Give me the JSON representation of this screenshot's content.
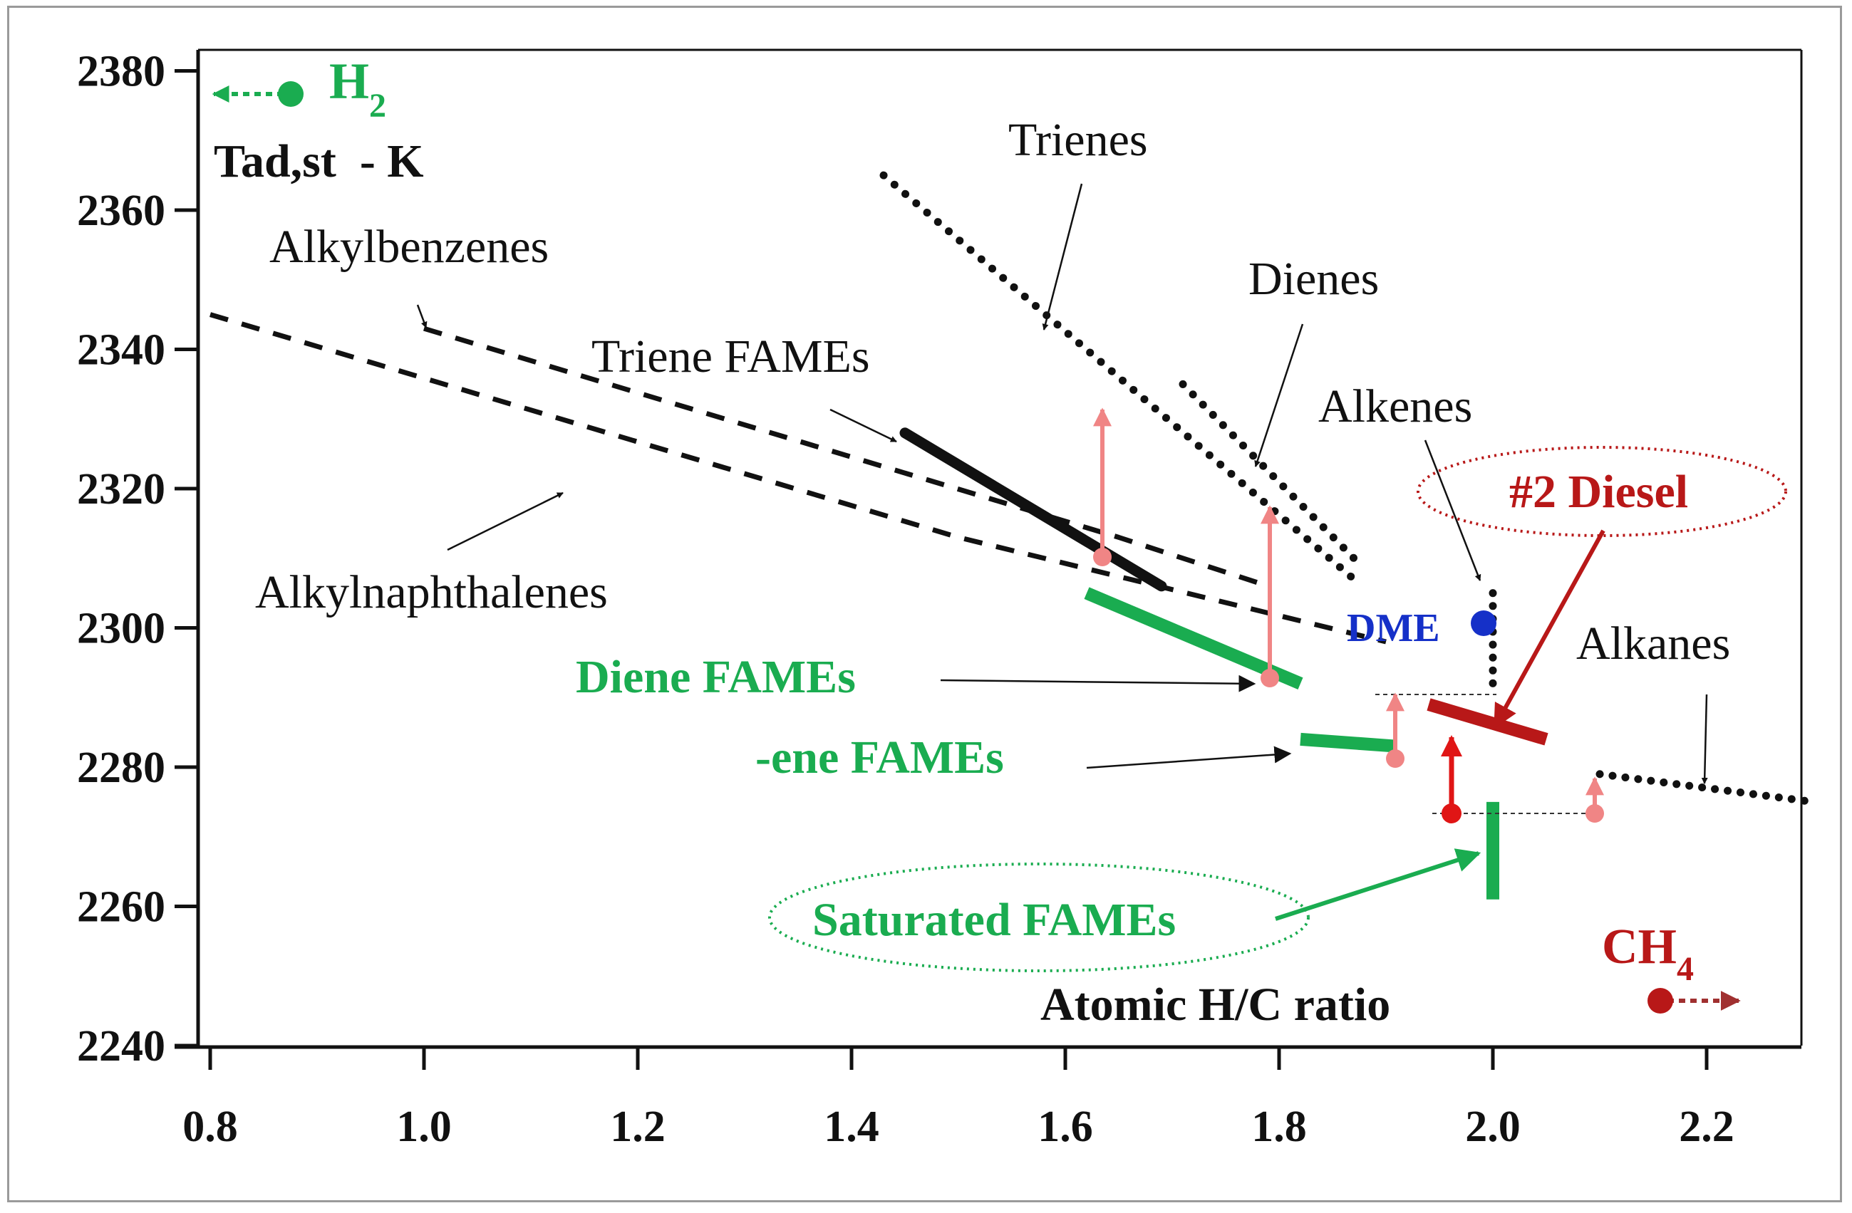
{
  "chart_data": {
    "type": "line",
    "ylabel": "Tad,st  - K",
    "xlabel": "Atomic H/C ratio",
    "xlim": [
      0.79,
      2.3
    ],
    "ylim": [
      2240,
      2386
    ],
    "x_ticks": [
      "0.8",
      "1.0",
      "1.2",
      "1.4",
      "1.6",
      "1.8",
      "2.0",
      "2.2"
    ],
    "y_ticks": [
      "2240",
      "2260",
      "2280",
      "2300",
      "2320",
      "2340",
      "2360",
      "2380"
    ],
    "colors": {
      "hydrocarbon": "#111111",
      "fame": "#1aac50",
      "arrow_pink": "#f08585",
      "diesel": "#b81818",
      "dme": "#1530c8",
      "ch4": "#b81818",
      "h2": "#1aac50"
    },
    "series": [
      {
        "name": "Alkylbenzenes",
        "style": "dashed",
        "x": [
          1.0,
          1.65,
          1.79
        ],
        "y": [
          2343,
          2313,
          2306
        ]
      },
      {
        "name": "Alkylnaphthalenes",
        "style": "dashed",
        "x": [
          0.8,
          1.5,
          1.9
        ],
        "y": [
          2345,
          2313,
          2298
        ]
      },
      {
        "name": "Trienes",
        "style": "dotted",
        "x": [
          1.43,
          1.87
        ],
        "y": [
          2365,
          2307
        ]
      },
      {
        "name": "Dienes",
        "style": "dotted",
        "x": [
          1.71,
          1.87
        ],
        "y": [
          2335,
          2310
        ]
      },
      {
        "name": "Alkenes",
        "style": "dotted",
        "x": [
          2.0,
          2.0
        ],
        "y": [
          2305,
          2292
        ]
      },
      {
        "name": "Alkanes",
        "style": "dotted",
        "x": [
          2.1,
          2.3
        ],
        "y": [
          2279,
          2275
        ]
      },
      {
        "name": "Triene FAMEs",
        "style": "solid",
        "x": [
          1.45,
          1.69
        ],
        "y": [
          2328,
          2306
        ]
      },
      {
        "name": "Diene FAMEs",
        "style": "solid",
        "x": [
          1.62,
          1.82
        ],
        "y": [
          2305,
          2292
        ]
      },
      {
        "name": "-ene FAMEs",
        "style": "solid",
        "x": [
          1.82,
          1.91
        ],
        "y": [
          2284,
          2283
        ]
      },
      {
        "name": "Saturated FAMEs",
        "style": "solid",
        "x": [
          2.0,
          2.0
        ],
        "y": [
          2275,
          2261
        ]
      },
      {
        "name": "#2 Diesel",
        "style": "solid",
        "x": [
          1.94,
          2.05
        ],
        "y": [
          2289,
          2284
        ]
      }
    ],
    "points": [
      {
        "name": "DME",
        "x": 2.0,
        "y": 2302
      },
      {
        "name": "H2",
        "x": 0.87,
        "y": 2379
      },
      {
        "name": "CH4",
        "x": 2.16,
        "y": 2247
      }
    ],
    "labels": {
      "h2": "H",
      "h2_sub": "2",
      "ch4": "CH",
      "ch4_sub": "4",
      "dme": "DME",
      "trienes": "Trienes",
      "dienes": "Dienes",
      "alkenes": "Alkenes",
      "alkanes": "Alkanes",
      "alkylbenzenes": "Alkylbenzenes",
      "alkylnaphthalenes": "Alkylnaphthalenes",
      "triene_fames": "Triene FAMEs",
      "diene_fames": "Diene FAMEs",
      "ene_fames": "-ene FAMEs",
      "saturated_fames": "Saturated FAMEs",
      "diesel": "#2 Diesel"
    },
    "grid": false,
    "legend": "none"
  }
}
